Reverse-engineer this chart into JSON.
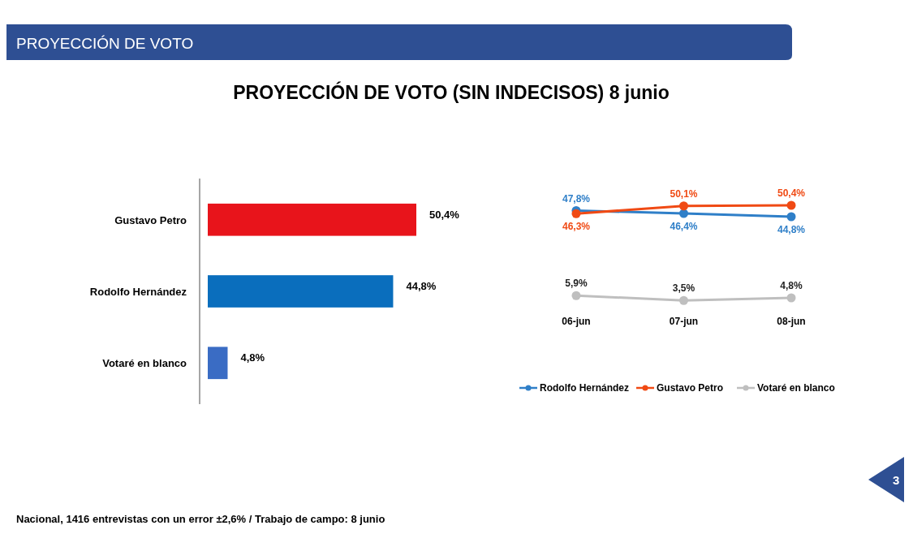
{
  "chart_data": [
    {
      "type": "bar",
      "orientation": "horizontal",
      "title": "PROYECCIÓN DE VOTO (SIN INDECISOS) 8 junio",
      "categories": [
        "Gustavo Petro",
        "Rodolfo Hernández",
        "Votaré en blanco"
      ],
      "values": [
        50.4,
        44.8,
        4.8
      ],
      "colors": [
        "#e8141b",
        "#0a6ebd",
        "#3a6cc4"
      ],
      "value_labels": [
        "50,4%",
        "44,8%",
        "4,8%"
      ],
      "annotations": [
        "PROYECCIÓN DE VOTO",
        "Nacional, 1416 entrevistas con un error ±2,6% / Trabajo de campo: 8 junio",
        "3"
      ]
    },
    {
      "type": "line",
      "categories": [
        "06-jun",
        "07-jun",
        "08-jun"
      ],
      "legend": "bottom",
      "marker": "circle",
      "series": [
        {
          "name": "Rodolfo Hernández",
          "color": "#2f7fc8",
          "values": [
            47.8,
            46.4,
            44.8
          ],
          "value_labels": [
            "47,8%",
            "46,4%",
            "44,8%"
          ]
        },
        {
          "name": "Gustavo Petro",
          "color": "#f04a14",
          "values": [
            46.3,
            50.1,
            50.4
          ],
          "value_labels": [
            "46,3%",
            "50,1%",
            "50,4%"
          ]
        },
        {
          "name": "Votaré en blanco",
          "color": "#bfbfbf",
          "values": [
            5.9,
            3.5,
            4.8
          ],
          "value_labels": [
            "5,9%",
            "3,5%",
            "4,8%"
          ]
        }
      ]
    }
  ]
}
